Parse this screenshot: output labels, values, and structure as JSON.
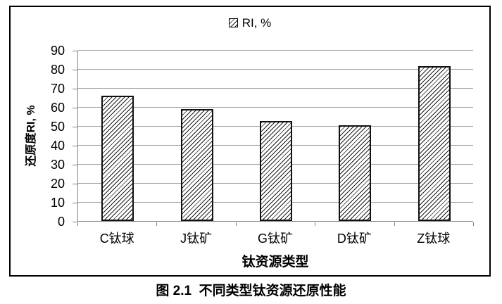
{
  "figure": {
    "caption": "图 2.1  不同类型钛资源还原性能"
  },
  "chart_data": {
    "type": "bar",
    "title": "",
    "categories": [
      "C钛球",
      "J钛矿",
      "G钛矿",
      "D钛矿",
      "Z钛球"
    ],
    "values": [
      66,
      59,
      52.5,
      50.5,
      81.5
    ],
    "legend": {
      "label": "RI, %",
      "swatch": "black-diagonal-hatch-square"
    },
    "legend_position": "top-center",
    "xlabel": "钛资源类型",
    "ylabel": "还原度RI, %",
    "ylim": [
      0,
      90
    ],
    "yticks": [
      0,
      10,
      20,
      30,
      40,
      50,
      60,
      70,
      80,
      90
    ],
    "grid": "horizontal",
    "bar_style": {
      "fill": "#ffffff",
      "hatch": "diagonal-forward",
      "edge_color": "#000000"
    },
    "colors": {
      "gridline": "#9d9d9d",
      "axis": "#7f7f7f",
      "frame_border": "#000000",
      "text": "#000000"
    }
  }
}
